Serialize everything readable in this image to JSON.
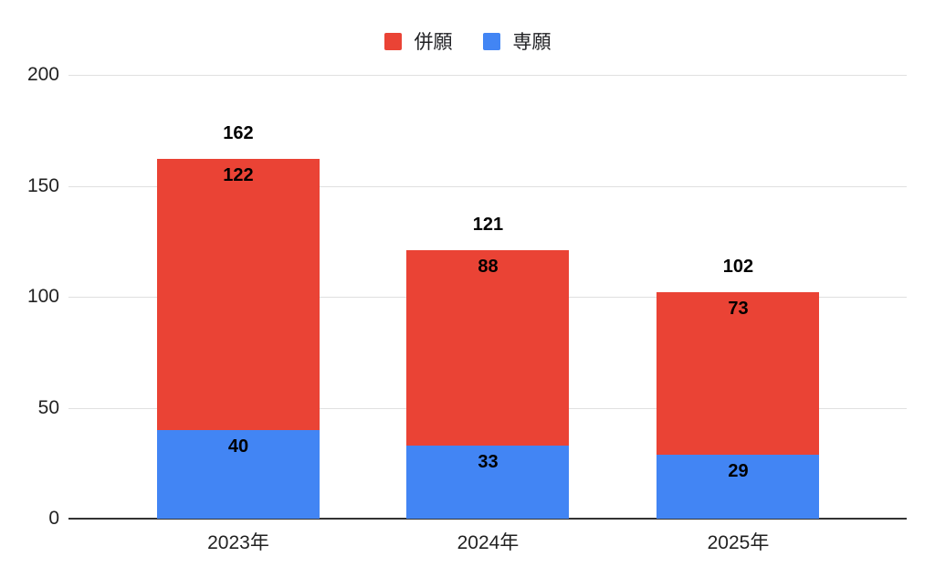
{
  "page": {
    "background": "#ffffff"
  },
  "legend": {
    "position": "top-center",
    "items": [
      {
        "label": "併願",
        "color": "#EA4335"
      },
      {
        "label": "専願",
        "color": "#4285F4"
      }
    ]
  },
  "chart_data": {
    "type": "bar",
    "stacked": true,
    "orientation": "vertical",
    "title": "",
    "xlabel": "",
    "ylabel": "",
    "categories": [
      "2023年",
      "2024年",
      "2025年"
    ],
    "series": [
      {
        "name": "専願",
        "color": "#4285F4",
        "stack_position": "bottom",
        "values": [
          40,
          33,
          29
        ]
      },
      {
        "name": "併願",
        "color": "#EA4335",
        "stack_position": "top",
        "values": [
          122,
          88,
          73
        ]
      }
    ],
    "totals": [
      162,
      121,
      102
    ],
    "ylim": [
      0,
      200
    ],
    "y_ticks": [
      0,
      50,
      100,
      150,
      200
    ],
    "grid": true,
    "legend_position": "top",
    "gridline_color": "#e0e0e0",
    "axis_line_color": "#333333",
    "data_label_color": "#000000",
    "tick_label_color": "#222222"
  }
}
